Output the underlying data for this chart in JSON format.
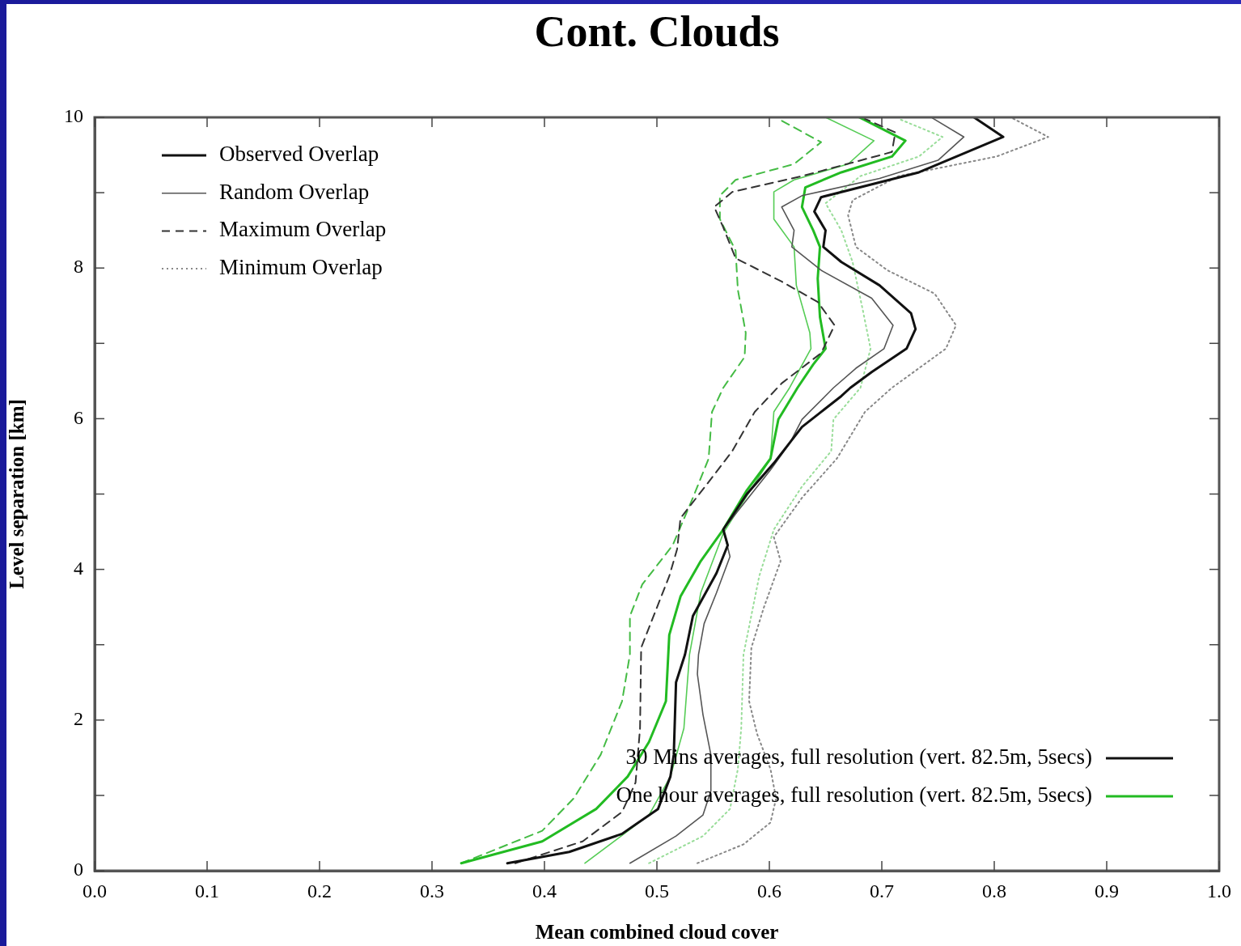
{
  "chart_data": {
    "type": "line",
    "title": "Cont. Clouds",
    "xlabel": "Mean combined cloud cover",
    "ylabel": "Level separation [km]",
    "xlim": [
      0,
      1
    ],
    "xticks": [
      {
        "value": 0,
        "label": "0.0"
      },
      {
        "value": 0.1,
        "label": "0.1"
      },
      {
        "value": 0.2,
        "label": "0.2"
      },
      {
        "value": 0.3,
        "label": "0.3"
      },
      {
        "value": 0.4,
        "label": "0.4"
      },
      {
        "value": 0.5,
        "label": "0.5"
      },
      {
        "value": 0.6,
        "label": "0.6"
      },
      {
        "value": 0.7,
        "label": "0.7"
      },
      {
        "value": 0.8,
        "label": "0.8"
      },
      {
        "value": 0.9,
        "label": "0.9"
      },
      {
        "value": 1,
        "label": "1.0"
      }
    ],
    "ylim": [
      0,
      10
    ],
    "yticks": [
      0,
      {
        "value": 1,
        "label": null
      },
      2,
      {
        "value": 3,
        "label": null
      },
      4,
      {
        "value": 5,
        "label": null
      },
      6,
      {
        "value": 7,
        "label": null
      },
      8,
      {
        "value": 9,
        "label": null
      },
      10
    ],
    "grid": false,
    "legend": "top left",
    "marker": "none",
    "series": [
      {
        "name": "Observed Overlap",
        "color": "#111111",
        "line_style": "solid",
        "x": [
          0.367,
          0.422,
          0.469,
          0.501,
          0.512,
          0.515,
          0.517,
          0.525,
          0.532,
          0.553,
          0.563,
          0.559,
          0.58,
          0.604,
          0.629,
          0.664,
          0.672,
          0.691,
          0.722,
          0.73,
          0.726,
          0.698,
          0.664,
          0.648,
          0.65,
          0.64,
          0.646,
          0.733,
          0.808,
          0.782
        ],
        "values": [
          0.1,
          0.25,
          0.49,
          0.82,
          1.25,
          1.54,
          2.5,
          2.87,
          3.38,
          3.95,
          4.32,
          4.53,
          5.0,
          5.41,
          5.89,
          6.3,
          6.41,
          6.62,
          6.93,
          7.19,
          7.4,
          7.77,
          8.08,
          8.28,
          8.5,
          8.75,
          8.94,
          9.27,
          9.74,
          10
        ]
      },
      {
        "name": "Random Overlap",
        "color": "#555555",
        "line_style": "solid",
        "x": [
          0.476,
          0.517,
          0.541,
          0.548,
          0.548,
          0.541,
          0.536,
          0.537,
          0.542,
          0.553,
          0.565,
          0.559,
          0.601,
          0.618,
          0.629,
          0.657,
          0.677,
          0.702,
          0.71,
          0.691,
          0.646,
          0.62,
          0.622,
          0.611,
          0.629,
          0.698,
          0.75,
          0.773,
          0.745
        ],
        "values": [
          0.1,
          0.46,
          0.74,
          1.06,
          1.54,
          2.07,
          2.61,
          2.87,
          3.28,
          3.69,
          4.17,
          4.53,
          5.32,
          5.67,
          5.99,
          6.41,
          6.67,
          6.93,
          7.24,
          7.6,
          7.97,
          8.28,
          8.5,
          8.81,
          8.96,
          9.19,
          9.43,
          9.74,
          9.99
        ]
      },
      {
        "name": "Maximum Overlap",
        "color": "#333333",
        "line_style": "dashed",
        "x": [
          0.374,
          0.434,
          0.469,
          0.481,
          0.485,
          0.486,
          0.497,
          0.511,
          0.518,
          0.521,
          0.546,
          0.567,
          0.587,
          0.611,
          0.646,
          0.658,
          0.643,
          0.611,
          0.57,
          0.559,
          0.551,
          0.567,
          0.629,
          0.709,
          0.712,
          0.685
        ],
        "values": [
          0.1,
          0.39,
          0.78,
          1.17,
          1.89,
          2.96,
          3.38,
          3.91,
          4.27,
          4.68,
          5.16,
          5.57,
          6.09,
          6.47,
          6.87,
          7.24,
          7.55,
          7.82,
          8.13,
          8.54,
          8.81,
          9.01,
          9.22,
          9.54,
          9.8,
          9.98
        ]
      },
      {
        "name": "Minimum Overlap",
        "color": "#888888",
        "line_style": "dotted",
        "x": [
          0.536,
          0.577,
          0.601,
          0.606,
          0.601,
          0.589,
          0.582,
          0.584,
          0.595,
          0.61,
          0.604,
          0.629,
          0.66,
          0.685,
          0.709,
          0.757,
          0.766,
          0.747,
          0.705,
          0.677,
          0.67,
          0.674,
          0.715,
          0.802,
          0.848,
          0.816
        ],
        "values": [
          0.1,
          0.35,
          0.64,
          0.96,
          1.35,
          1.82,
          2.25,
          2.96,
          3.49,
          4.11,
          4.43,
          4.95,
          5.47,
          6.09,
          6.41,
          6.93,
          7.24,
          7.66,
          7.97,
          8.28,
          8.7,
          8.9,
          9.22,
          9.48,
          9.74,
          9.99
        ]
      },
      {
        "color": "#22bb22",
        "line_style": "solid",
        "x": [
          0.326,
          0.398,
          0.446,
          0.474,
          0.493,
          0.508,
          0.511,
          0.521,
          0.539,
          0.559,
          0.58,
          0.601,
          0.608,
          0.625,
          0.639,
          0.65,
          0.645,
          0.643,
          0.645,
          0.639,
          0.629,
          0.632,
          0.664,
          0.709,
          0.721,
          0.68
        ],
        "values": [
          0.1,
          0.39,
          0.82,
          1.25,
          1.71,
          2.25,
          3.13,
          3.64,
          4.11,
          4.53,
          5.05,
          5.47,
          5.99,
          6.41,
          6.72,
          6.93,
          7.35,
          7.86,
          8.28,
          8.5,
          8.81,
          9.07,
          9.27,
          9.48,
          9.69,
          10
        ]
      },
      {
        "color": "#55cc55",
        "line_style": "solid",
        "x": [
          0.436,
          0.493,
          0.512,
          0.524,
          0.529,
          0.539,
          0.559,
          0.601,
          0.604,
          0.618,
          0.637,
          0.636,
          0.624,
          0.622,
          0.604,
          0.604,
          0.622,
          0.67,
          0.693,
          0.65
        ],
        "values": [
          0.1,
          0.74,
          1.25,
          1.89,
          2.87,
          3.69,
          4.48,
          5.47,
          6.09,
          6.41,
          6.93,
          7.14,
          7.77,
          8.28,
          8.65,
          9.01,
          9.17,
          9.38,
          9.69,
          10
        ]
      },
      {
        "color": "#44bb44",
        "line_style": "dashed",
        "x": [
          0.326,
          0.398,
          0.426,
          0.45,
          0.469,
          0.476,
          0.476,
          0.487,
          0.514,
          0.532,
          0.546,
          0.549,
          0.559,
          0.578,
          0.579,
          0.572,
          0.57,
          0.556,
          0.556,
          0.57,
          0.622,
          0.646,
          0.608
        ],
        "values": [
          0.1,
          0.53,
          0.96,
          1.54,
          2.25,
          2.87,
          3.38,
          3.8,
          4.32,
          4.95,
          5.47,
          6.09,
          6.41,
          6.82,
          7.14,
          7.71,
          8.23,
          8.65,
          8.96,
          9.17,
          9.38,
          9.67,
          9.98
        ]
      },
      {
        "color": "#99dd99",
        "line_style": "dotted",
        "x": [
          0.493,
          0.541,
          0.565,
          0.572,
          0.575,
          0.577,
          0.591,
          0.604,
          0.629,
          0.655,
          0.657,
          0.681,
          0.69,
          0.683,
          0.674,
          0.664,
          0.65,
          0.681,
          0.733,
          0.754,
          0.715
        ],
        "values": [
          0.1,
          0.46,
          0.82,
          1.35,
          1.89,
          2.87,
          3.91,
          4.53,
          5.1,
          5.57,
          5.99,
          6.41,
          6.93,
          7.45,
          8.08,
          8.5,
          8.86,
          9.22,
          9.48,
          9.74,
          9.98
        ]
      }
    ],
    "annotations": [
      "30 Mins averages, full resolution (vert. 82.5m, 5secs)",
      "One hour averages, full resolution (vert. 82.5m, 5secs)"
    ]
  }
}
